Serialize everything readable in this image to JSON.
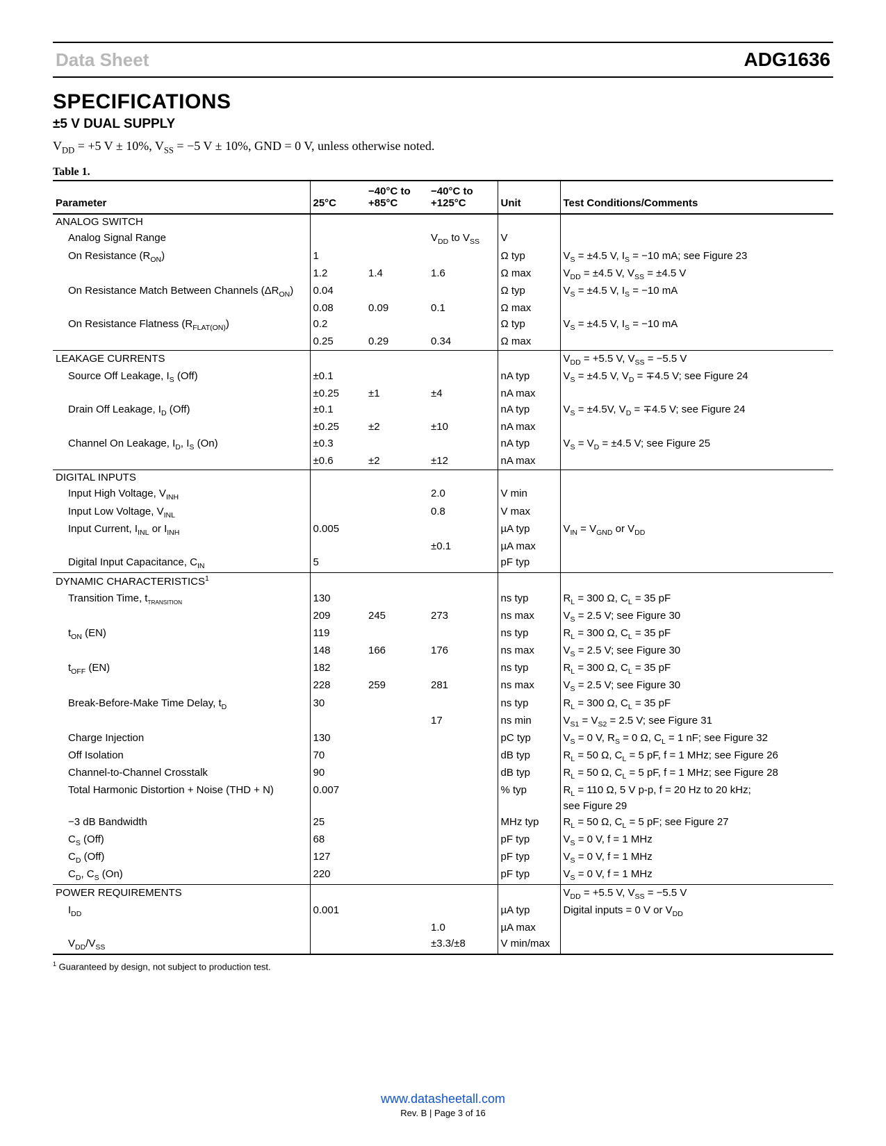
{
  "header": {
    "left": "Data Sheet",
    "right": "ADG1636"
  },
  "title": "SPECIFICATIONS",
  "subtitle": "±5 V DUAL SUPPLY",
  "condition_html": "V<sub>DD</sub> = +5 V ± 10%, V<sub>SS</sub> = −5 V ± 10%, GND = 0 V, unless otherwise noted.",
  "table_caption": "Table 1.",
  "columns": {
    "param": "Parameter",
    "c25": "25°C",
    "c85_html": "−40°C to<br>+85°C",
    "c125_html": "−40°C to<br>+125°C",
    "unit": "Unit",
    "test": "Test Conditions/Comments"
  },
  "rows": [
    {
      "cls": "section-hdr",
      "p": "ANALOG SWITCH"
    },
    {
      "indent": 1,
      "p": "Analog Signal Range",
      "c125_html": "V<sub>DD</sub> to V<sub>SS</sub>",
      "unit": "V"
    },
    {
      "indent": 1,
      "p_html": "On Resistance (R<sub>ON</sub>)",
      "c25": "1",
      "unit": "Ω typ",
      "test_html": "V<sub>S</sub> = ±4.5 V, I<sub>S</sub> = −10 mA; see Figure 23"
    },
    {
      "indent": 1,
      "c25": "1.2",
      "c85": "1.4",
      "c125": "1.6",
      "unit": "Ω max",
      "test_html": "V<sub>DD</sub> = ±4.5 V, V<sub>SS</sub> = ±4.5 V"
    },
    {
      "indent": 1,
      "p_html": "On Resistance Match Between Channels (ΔR<sub>ON</sub>)",
      "c25": "0.04",
      "unit": "Ω typ",
      "test_html": "V<sub>S</sub> = ±4.5 V, I<sub>S</sub> = −10 mA"
    },
    {
      "indent": 1,
      "c25": "0.08",
      "c85": "0.09",
      "c125": "0.1",
      "unit": "Ω max"
    },
    {
      "indent": 1,
      "p_html": "On Resistance Flatness (R<sub>FLAT(ON)</sub>)",
      "c25": "0.2",
      "unit": "Ω typ",
      "test_html": "V<sub>S</sub> = ±4.5 V, I<sub>S</sub> = −10 mA"
    },
    {
      "indent": 1,
      "c25": "0.25",
      "c85": "0.29",
      "c125": "0.34",
      "unit": "Ω max"
    },
    {
      "cls": "section-hdr",
      "p": "LEAKAGE CURRENTS",
      "test_html": "V<sub>DD</sub> = +5.5 V, V<sub>SS</sub> = −5.5 V"
    },
    {
      "indent": 1,
      "p_html": "Source Off Leakage, I<sub>S</sub> (Off)",
      "c25": "±0.1",
      "unit": "nA typ",
      "test_html": "V<sub>S</sub> = ±4.5 V, V<sub>D</sub> = ∓4.5 V; see Figure 24"
    },
    {
      "indent": 1,
      "c25": "±0.25",
      "c85": "±1",
      "c125": "±4",
      "unit": "nA max"
    },
    {
      "indent": 1,
      "p_html": "Drain Off Leakage, I<sub>D</sub> (Off)",
      "c25": "±0.1",
      "unit": "nA typ",
      "test_html": "V<sub>S</sub> = ±4.5V, V<sub>D</sub> = ∓4.5 V; see Figure 24"
    },
    {
      "indent": 1,
      "c25": "±0.25",
      "c85": "±2",
      "c125": "±10",
      "unit": "nA max"
    },
    {
      "indent": 1,
      "p_html": "Channel On Leakage, I<sub>D</sub>, I<sub>S</sub> (On)",
      "c25": "±0.3",
      "unit": "nA typ",
      "test_html": "V<sub>S</sub> = V<sub>D</sub> = ±4.5 V; see Figure 25"
    },
    {
      "indent": 1,
      "c25": "±0.6",
      "c85": "±2",
      "c125": "±12",
      "unit": "nA max"
    },
    {
      "cls": "section-hdr",
      "p": "DIGITAL INPUTS"
    },
    {
      "indent": 1,
      "p_html": "Input High Voltage, V<sub>INH</sub>",
      "c125": "2.0",
      "unit": "V min"
    },
    {
      "indent": 1,
      "p_html": "Input Low Voltage, V<sub>INL</sub>",
      "c125": "0.8",
      "unit": "V max"
    },
    {
      "indent": 1,
      "p_html": "Input Current, I<sub>INL</sub> or I<sub>INH</sub>",
      "c25": "0.005",
      "unit": "µA typ",
      "test_html": "V<sub>IN</sub> = V<sub>GND</sub> or V<sub>DD</sub>"
    },
    {
      "indent": 1,
      "c125": "±0.1",
      "unit": "µA max"
    },
    {
      "indent": 1,
      "p_html": "Digital Input Capacitance, C<sub>IN</sub>",
      "c25": "5",
      "unit": "pF typ"
    },
    {
      "cls": "section-hdr",
      "p_html": "DYNAMIC CHARACTERISTICS<sup>1</sup>"
    },
    {
      "indent": 1,
      "p_html": "Transition Time, t<sub><span class=\"smallcaps\">TRANSITION</span></sub>",
      "c25": "130",
      "unit": "ns typ",
      "test_html": "R<sub>L</sub> = 300 Ω, C<sub>L</sub> = 35 pF"
    },
    {
      "indent": 1,
      "c25": "209",
      "c85": "245",
      "c125": "273",
      "unit": "ns max",
      "test_html": "V<sub>S</sub> = 2.5 V; see Figure 30"
    },
    {
      "indent": 1,
      "p_html": "t<sub>ON</sub> (EN)",
      "c25": "119",
      "unit": "ns typ",
      "test_html": "R<sub>L</sub> = 300 Ω, C<sub>L</sub> = 35 pF"
    },
    {
      "indent": 1,
      "c25": "148",
      "c85": "166",
      "c125": "176",
      "unit": "ns max",
      "test_html": "V<sub>S</sub> = 2.5 V; see Figure 30"
    },
    {
      "indent": 1,
      "p_html": "t<sub>OFF</sub> (EN)",
      "c25": "182",
      "unit": "ns typ",
      "test_html": "R<sub>L</sub> = 300 Ω, C<sub>L</sub> = 35 pF"
    },
    {
      "indent": 1,
      "c25": "228",
      "c85": "259",
      "c125": "281",
      "unit": "ns max",
      "test_html": "V<sub>S</sub> = 2.5 V; see Figure 30"
    },
    {
      "indent": 1,
      "p_html": "Break-Before-Make Time Delay, t<sub>D</sub>",
      "c25": "30",
      "unit": "ns typ",
      "test_html": "R<sub>L</sub> = 300 Ω, C<sub>L</sub> = 35 pF"
    },
    {
      "indent": 1,
      "c125": "17",
      "unit": "ns min",
      "test_html": "V<sub>S1</sub> = V<sub>S2</sub> = 2.5 V; see Figure 31"
    },
    {
      "indent": 1,
      "p": "Charge Injection",
      "c25": "130",
      "unit": "pC typ",
      "test_html": "V<sub>S</sub> = 0 V, R<sub>S</sub> = 0 Ω, C<sub>L</sub> = 1 nF; see Figure 32"
    },
    {
      "indent": 1,
      "p": "Off Isolation",
      "c25": "70",
      "unit": "dB typ",
      "test_html": "R<sub>L</sub> = 50 Ω, C<sub>L</sub> = 5 pF, f = 1 MHz; see Figure 26"
    },
    {
      "indent": 1,
      "p": "Channel-to-Channel Crosstalk",
      "c25": "90",
      "unit": "dB typ",
      "test_html": "R<sub>L</sub> = 50 Ω, C<sub>L</sub> = 5 pF, f = 1 MHz; see Figure 28"
    },
    {
      "indent": 1,
      "p": "Total Harmonic Distortion + Noise (THD + N)",
      "c25": "0.007",
      "unit": "% typ",
      "test_html": "R<sub>L</sub> = 110 Ω, 5 V p-p, f = 20 Hz to 20 kHz;<br>see Figure 29"
    },
    {
      "indent": 1,
      "p": "−3 dB Bandwidth",
      "c25": "25",
      "unit": "MHz typ",
      "test_html": "R<sub>L</sub> = 50 Ω, C<sub>L</sub> = 5 pF; see Figure 27"
    },
    {
      "indent": 1,
      "p_html": "C<sub>S</sub> (Off)",
      "c25": "68",
      "unit": "pF typ",
      "test_html": "V<sub>S</sub> = 0 V, f = 1 MHz"
    },
    {
      "indent": 1,
      "p_html": "C<sub>D</sub> (Off)",
      "c25": "127",
      "unit": "pF typ",
      "test_html": "V<sub>S</sub> = 0 V, f = 1 MHz"
    },
    {
      "indent": 1,
      "p_html": "C<sub>D</sub>, C<sub>S</sub> (On)",
      "c25": "220",
      "unit": "pF typ",
      "test_html": "V<sub>S</sub> = 0 V, f = 1 MHz"
    },
    {
      "cls": "section-hdr",
      "p": "POWER REQUIREMENTS",
      "test_html": "V<sub>DD</sub> = +5.5 V, V<sub>SS</sub> = −5.5 V"
    },
    {
      "indent": 1,
      "p_html": "I<sub>DD</sub>",
      "c25": "0.001",
      "unit": "µA typ",
      "test_html": "Digital inputs = 0 V or V<sub>DD</sub>"
    },
    {
      "indent": 1,
      "c125": "1.0",
      "unit": "µA max"
    },
    {
      "indent": 1,
      "cls": "last-row",
      "p_html": "V<sub>DD</sub>/V<sub>SS</sub>",
      "c125": "±3.3/±8",
      "unit": "V min/max"
    }
  ],
  "footnote_html": "<sup>1</sup> Guaranteed by design, not subject to production test.",
  "footer": {
    "link": "www.datasheetall.com",
    "pageinfo": "Rev. B | Page 3 of 16"
  }
}
